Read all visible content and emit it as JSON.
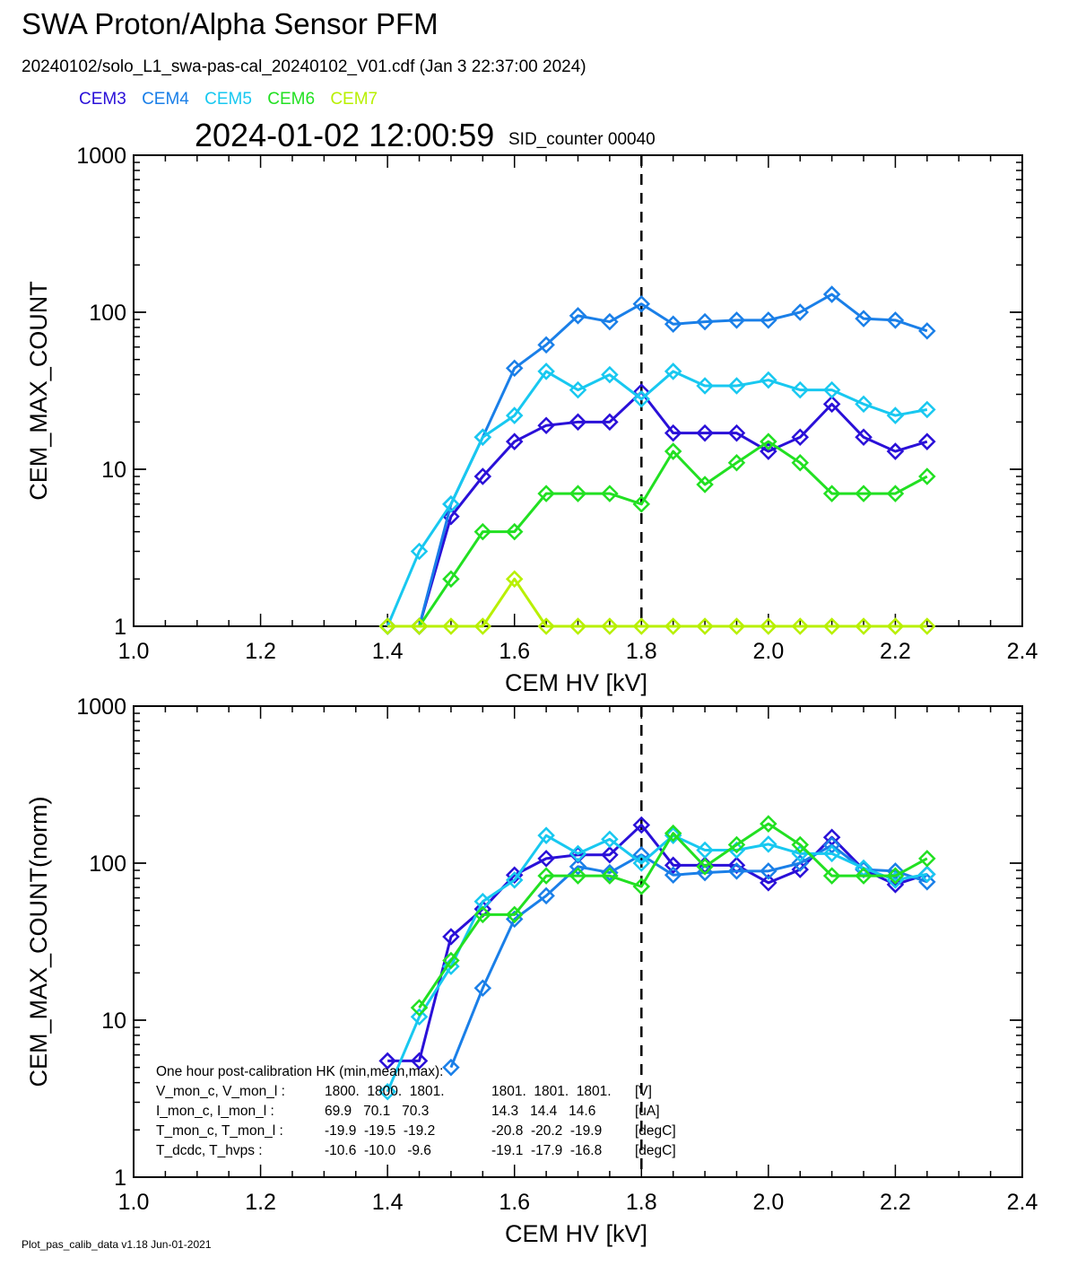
{
  "header": {
    "title": "SWA Proton/Alpha Sensor PFM",
    "subtitle": "20240102/solo_L1_swa-pas-cal_20240102_V01.cdf  (Jan  3 22:37:00 2024)",
    "datetime": "2024-01-02 12:00:59",
    "sid_label": "SID_counter 00040"
  },
  "legend": [
    {
      "name": "CEM3",
      "color": "#2a10d8"
    },
    {
      "name": "CEM4",
      "color": "#1a7fe8"
    },
    {
      "name": "CEM5",
      "color": "#18c8f0"
    },
    {
      "name": "CEM6",
      "color": "#22e022"
    },
    {
      "name": "CEM7",
      "color": "#b8f000"
    }
  ],
  "footer": "Plot_pas_calib_data v1.18 Jun-01-2021",
  "hk": {
    "heading": "One hour post-calibration HK (min,mean,max):",
    "rows": [
      {
        "label": "V_mon_c, V_mon_l :",
        "c": "1800.  1800.  1801.",
        "l": "1801.  1801.  1801.",
        "unit": "[V]"
      },
      {
        "label": "I_mon_c,  I_mon_l :",
        "c": "69.9   70.1   70.3",
        "l": "14.3   14.4   14.6",
        "unit": "[uA]"
      },
      {
        "label": "T_mon_c, T_mon_l :",
        "c": "-19.9  -19.5  -19.2",
        "l": "-20.8  -20.2  -19.9",
        "unit": "[degC]"
      },
      {
        "label": "T_dcdc,    T_hvps :",
        "c": "-10.6  -10.0   -9.6",
        "l": "-19.1  -17.9  -16.8",
        "unit": "[degC]"
      }
    ]
  },
  "chart_data": [
    {
      "type": "line",
      "xlabel": "CEM HV [kV]",
      "ylabel": "CEM_MAX_COUNT",
      "xlim": [
        1.0,
        2.4
      ],
      "ylim": [
        1,
        1000
      ],
      "yscale": "log",
      "xticks": [
        "1.0",
        "1.2",
        "1.4",
        "1.6",
        "1.8",
        "2.0",
        "2.2",
        "2.4"
      ],
      "yticks": [
        "1",
        "10",
        "100",
        "1000"
      ],
      "vline": 1.8,
      "x": [
        1.4,
        1.45,
        1.5,
        1.55,
        1.6,
        1.65,
        1.7,
        1.75,
        1.8,
        1.85,
        1.9,
        1.95,
        2.0,
        2.05,
        2.1,
        2.15,
        2.2,
        2.25
      ],
      "series": [
        {
          "name": "CEM3",
          "color": "#2a10d8",
          "values": [
            1,
            1,
            5,
            9,
            15,
            19,
            20,
            20,
            31,
            17,
            17,
            17,
            13,
            16,
            26,
            16,
            13,
            15
          ]
        },
        {
          "name": "CEM4",
          "color": "#1a7fe8",
          "values": [
            1,
            1,
            6,
            16,
            44,
            62,
            95,
            87,
            113,
            84,
            87,
            89,
            89,
            100,
            130,
            91,
            89,
            76
          ]
        },
        {
          "name": "CEM5",
          "color": "#18c8f0",
          "values": [
            1,
            3,
            6,
            16,
            22,
            42,
            32,
            40,
            28,
            42,
            34,
            34,
            37,
            32,
            32,
            26,
            22,
            24
          ]
        },
        {
          "name": "CEM6",
          "color": "#22e022",
          "values": [
            1,
            1,
            2,
            4,
            4,
            7,
            7,
            7,
            6,
            13,
            8,
            11,
            15,
            11,
            7,
            7,
            7,
            9
          ]
        },
        {
          "name": "CEM7",
          "color": "#b8f000",
          "values": [
            1,
            1,
            1,
            1,
            2,
            1,
            1,
            1,
            1,
            1,
            1,
            1,
            1,
            1,
            1,
            1,
            1,
            1
          ]
        }
      ]
    },
    {
      "type": "line",
      "xlabel": "CEM HV [kV]",
      "ylabel": "CEM_MAX_COUNT(norm)",
      "xlim": [
        1.0,
        2.4
      ],
      "ylim": [
        1,
        1000
      ],
      "yscale": "log",
      "xticks": [
        "1.0",
        "1.2",
        "1.4",
        "1.6",
        "1.8",
        "2.0",
        "2.2",
        "2.4"
      ],
      "yticks": [
        "1",
        "10",
        "100",
        "1000"
      ],
      "vline": 1.8,
      "series": [
        {
          "name": "CEM3",
          "color": "#2a10d8",
          "x": [
            1.4,
            1.45,
            1.5,
            1.55,
            1.6,
            1.65,
            1.7,
            1.75,
            1.8,
            1.85,
            1.9,
            1.95,
            2.0,
            2.05,
            2.1,
            2.15,
            2.2,
            2.25
          ],
          "values": [
            5.5,
            5.5,
            34,
            51,
            84,
            107,
            113,
            113,
            175,
            97,
            97,
            97,
            75,
            91,
            146,
            91,
            73,
            85
          ]
        },
        {
          "name": "CEM4",
          "color": "#1a7fe8",
          "x": [
            1.5,
            1.55,
            1.6,
            1.65,
            1.7,
            1.75,
            1.8,
            1.85,
            1.9,
            1.95,
            2.0,
            2.05,
            2.1,
            2.15,
            2.2,
            2.25
          ],
          "values": [
            5,
            16,
            44,
            62,
            95,
            87,
            113,
            84,
            87,
            89,
            89,
            100,
            130,
            91,
            89,
            76
          ]
        },
        {
          "name": "CEM5",
          "color": "#18c8f0",
          "x": [
            1.4,
            1.45,
            1.5,
            1.55,
            1.6,
            1.65,
            1.7,
            1.75,
            1.8,
            1.85,
            1.9,
            1.95,
            2.0,
            2.05,
            2.1,
            2.15,
            2.2,
            2.25
          ],
          "values": [
            3.5,
            10.5,
            22,
            57,
            78,
            150,
            115,
            142,
            100,
            150,
            121,
            121,
            132,
            115,
            115,
            93,
            78,
            85
          ]
        },
        {
          "name": "CEM6",
          "color": "#22e022",
          "x": [
            1.45,
            1.5,
            1.55,
            1.6,
            1.65,
            1.7,
            1.75,
            1.8,
            1.85,
            1.9,
            1.95,
            2.0,
            2.05,
            2.1,
            2.15,
            2.2,
            2.25
          ],
          "values": [
            12,
            24,
            47,
            47,
            83,
            83,
            83,
            71,
            155,
            95,
            131,
            178,
            131,
            83,
            83,
            83,
            107
          ]
        }
      ]
    }
  ]
}
